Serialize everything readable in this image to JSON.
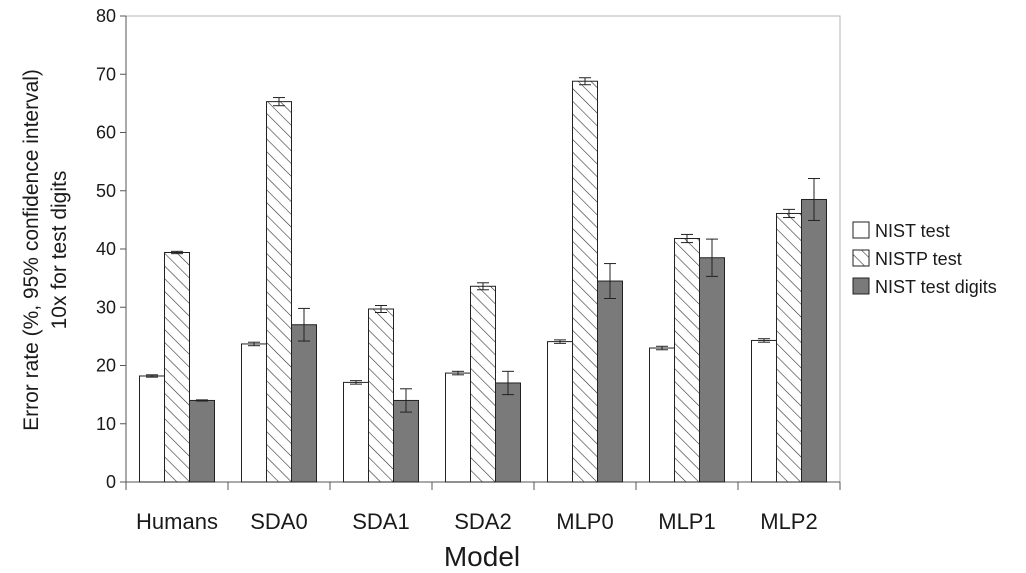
{
  "chart_data": {
    "type": "bar",
    "title": "",
    "xlabel": "Model",
    "ylabel_line1": "Error rate (%, 95% confidence interval)",
    "ylabel_line2": "10x for test digits",
    "ylim": [
      0,
      80
    ],
    "yticks": [
      0,
      10,
      20,
      30,
      40,
      50,
      60,
      70,
      80
    ],
    "grid": false,
    "legend_position": "right",
    "categories": [
      "Humans",
      "SDA0",
      "SDA1",
      "SDA2",
      "MLP0",
      "MLP1",
      "MLP2"
    ],
    "series": [
      {
        "name": "NIST test",
        "pattern": "solid",
        "color": "#ffffff",
        "values": [
          18.2,
          23.7,
          17.1,
          18.7,
          24.1,
          23.0,
          24.3
        ],
        "errors": [
          0.2,
          0.3,
          0.3,
          0.3,
          0.3,
          0.3,
          0.3
        ]
      },
      {
        "name": "NISTP test",
        "pattern": "hatch",
        "color": "#ffffff",
        "values": [
          39.4,
          65.3,
          29.7,
          33.6,
          68.8,
          41.8,
          46.1
        ],
        "errors": [
          0.2,
          0.7,
          0.6,
          0.6,
          0.6,
          0.7,
          0.7
        ]
      },
      {
        "name": "NIST test digits",
        "pattern": "solid",
        "color": "#7a7a7a",
        "values": [
          14.0,
          27.0,
          14.0,
          17.0,
          34.5,
          38.5,
          48.5
        ],
        "errors": [
          0.1,
          2.8,
          2.0,
          2.0,
          3.0,
          3.2,
          3.6
        ]
      }
    ]
  }
}
